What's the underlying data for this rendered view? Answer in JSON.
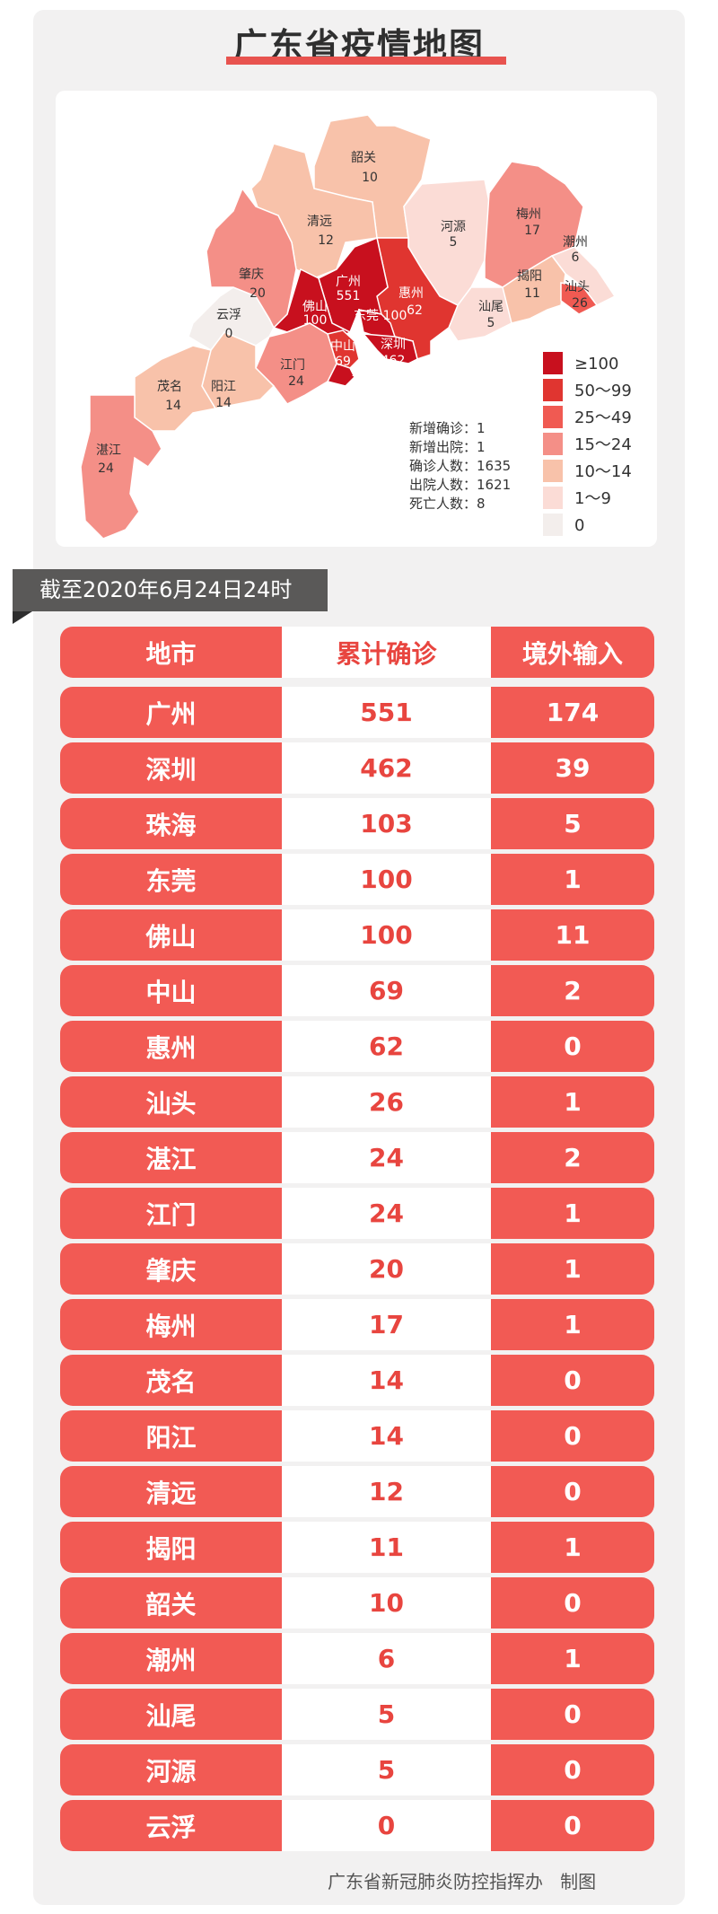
{
  "title": "广东省疫情地图",
  "colors": {
    "accent": "#e8534f",
    "table_red": "#f25a54",
    "banner": "#5a5958"
  },
  "map": {
    "regions": [
      {
        "name": "韶关",
        "value": "10"
      },
      {
        "name": "清远",
        "value": "12"
      },
      {
        "name": "河源",
        "value": "5"
      },
      {
        "name": "梅州",
        "value": "17"
      },
      {
        "name": "潮州",
        "value": "6"
      },
      {
        "name": "揭阳",
        "value": "11"
      },
      {
        "name": "汕头",
        "value": "26"
      },
      {
        "name": "汕尾",
        "value": "5"
      },
      {
        "name": "惠州",
        "value": "62"
      },
      {
        "name": "广州",
        "value": "551"
      },
      {
        "name": "佛山",
        "value": "100"
      },
      {
        "name": "东莞",
        "value": "100"
      },
      {
        "name": "深圳",
        "value": "462"
      },
      {
        "name": "中山",
        "value": "69"
      },
      {
        "name": "珠海",
        "value": "103"
      },
      {
        "name": "江门",
        "value": "24"
      },
      {
        "name": "阳江",
        "value": "14"
      },
      {
        "name": "云浮",
        "value": "0"
      },
      {
        "name": "肇庆",
        "value": "20"
      },
      {
        "name": "茂名",
        "value": "14"
      },
      {
        "name": "湛江",
        "value": "24"
      }
    ],
    "legend": [
      {
        "label": "≥100",
        "color": "#c8101e"
      },
      {
        "label": "50～99",
        "color": "#e03530"
      },
      {
        "label": "25～49",
        "color": "#f05a52"
      },
      {
        "label": "15～24",
        "color": "#f48f87"
      },
      {
        "label": "10～14",
        "color": "#f8c2aa"
      },
      {
        "label": "1～9",
        "color": "#fbdcd6"
      },
      {
        "label": "0",
        "color": "#f3eeec"
      }
    ],
    "stats": [
      "新增确诊：1",
      "新增出院：1",
      "确诊人数：1635",
      "出院人数：1621",
      "死亡人数：8"
    ]
  },
  "banner": "截至2020年6月24日24时",
  "table": {
    "headers": [
      "地市",
      "累计确诊",
      "境外输入"
    ],
    "rows": [
      [
        "广州",
        "551",
        "174"
      ],
      [
        "深圳",
        "462",
        "39"
      ],
      [
        "珠海",
        "103",
        "5"
      ],
      [
        "东莞",
        "100",
        "1"
      ],
      [
        "佛山",
        "100",
        "11"
      ],
      [
        "中山",
        "69",
        "2"
      ],
      [
        "惠州",
        "62",
        "0"
      ],
      [
        "汕头",
        "26",
        "1"
      ],
      [
        "湛江",
        "24",
        "2"
      ],
      [
        "江门",
        "24",
        "1"
      ],
      [
        "肇庆",
        "20",
        "1"
      ],
      [
        "梅州",
        "17",
        "1"
      ],
      [
        "茂名",
        "14",
        "0"
      ],
      [
        "阳江",
        "14",
        "0"
      ],
      [
        "清远",
        "12",
        "0"
      ],
      [
        "揭阳",
        "11",
        "1"
      ],
      [
        "韶关",
        "10",
        "0"
      ],
      [
        "潮州",
        "6",
        "1"
      ],
      [
        "汕尾",
        "5",
        "0"
      ],
      [
        "河源",
        "5",
        "0"
      ],
      [
        "云浮",
        "0",
        "0"
      ]
    ]
  },
  "footer": "广东省新冠肺炎防控指挥办   制图"
}
